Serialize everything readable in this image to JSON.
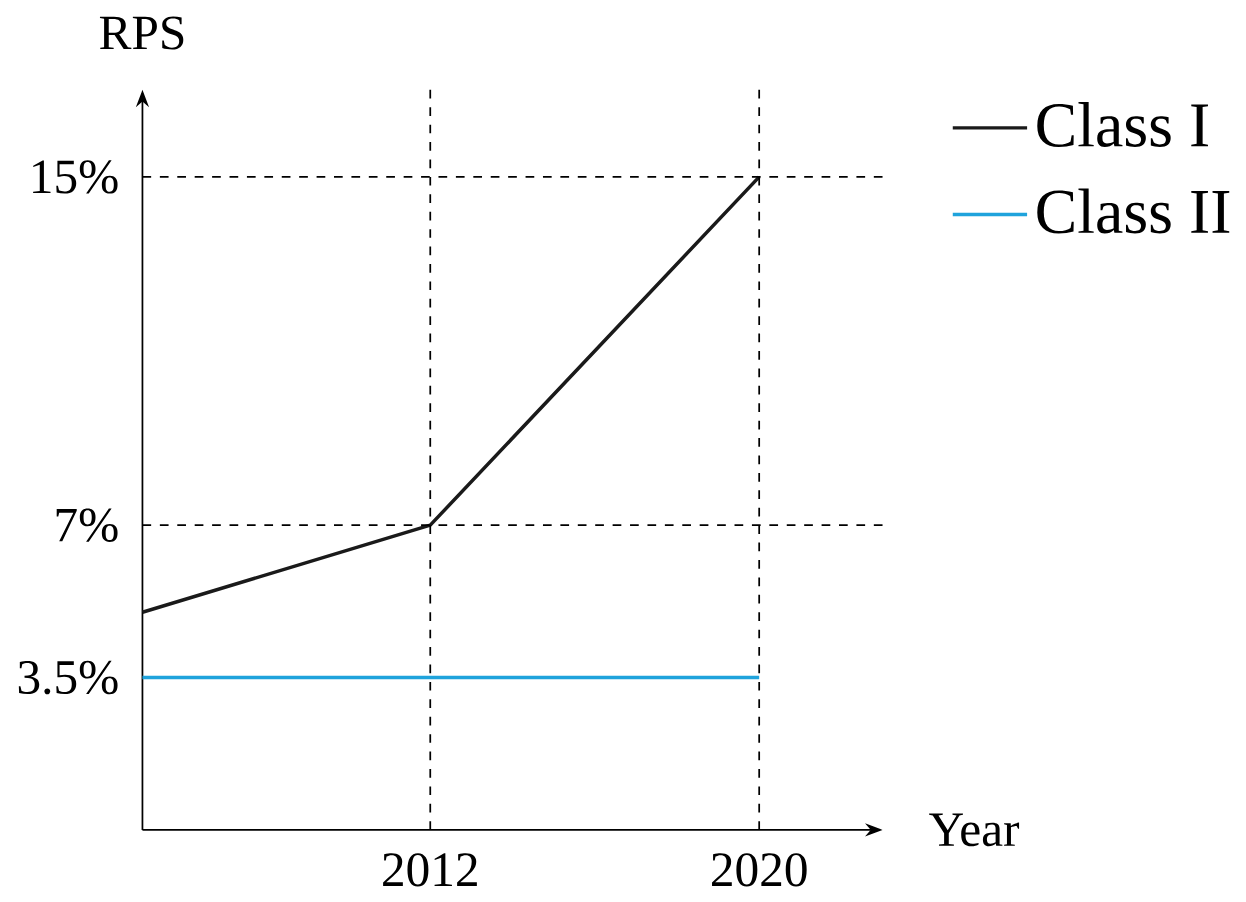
{
  "chart_data": {
    "type": "line",
    "xlabel": "Year",
    "ylabel": "RPS",
    "series": [
      {
        "name": "Class I",
        "color": "#1a1a1a",
        "x": [
          2005,
          2012,
          2020
        ],
        "values": [
          5,
          7,
          15
        ]
      },
      {
        "name": "Class II",
        "color": "#1fa3dc",
        "x": [
          2005,
          2020
        ],
        "values": [
          3.5,
          3.5
        ]
      }
    ],
    "xlim": [
      2005,
      2023
    ],
    "ylim": [
      0,
      17
    ],
    "xticks": [
      2012,
      2020
    ],
    "yticks": [
      {
        "value": 3.5,
        "label": "3.5%"
      },
      {
        "value": 7,
        "label": "7%"
      },
      {
        "value": 15,
        "label": "15%"
      }
    ],
    "ref_lines": [
      {
        "axis": "y",
        "value": 15,
        "line_style": "dashed"
      },
      {
        "axis": "y",
        "value": 7,
        "line_style": "dashed"
      },
      {
        "axis": "x",
        "value": 2012,
        "line_style": "dashed"
      },
      {
        "axis": "x",
        "value": 2020,
        "line_style": "dashed"
      }
    ],
    "legend": "top right",
    "grid": false,
    "marker": "none",
    "line_style": "solid"
  }
}
